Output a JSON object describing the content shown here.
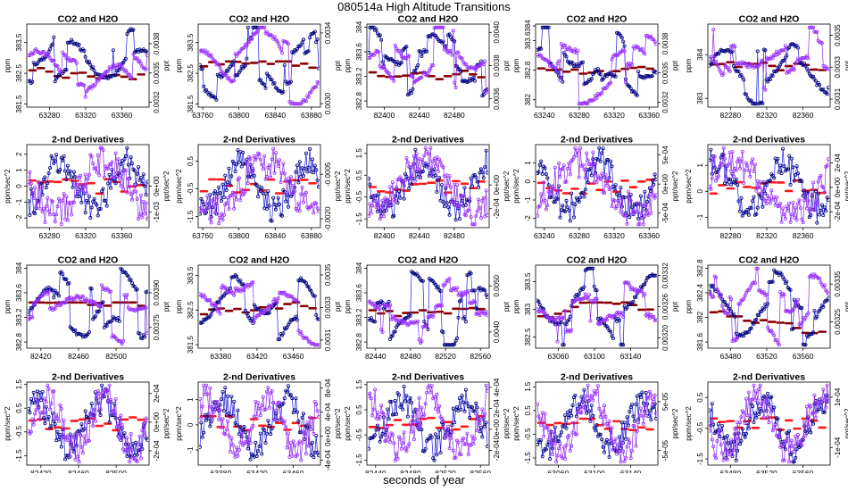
{
  "figure": {
    "title": "080514a   High Altitude Transitions",
    "xlabel": "seconds of year"
  },
  "chart_data": [
    {
      "type": "scatter",
      "row": 0,
      "col": 0,
      "title": "CO2 and H2O",
      "ylabel": "ppm",
      "y2label": "ppt",
      "xticks": [
        63280,
        63320,
        63360
      ],
      "xlim": [
        63255,
        63390
      ],
      "yticks": [
        381.5,
        382.5,
        383.5
      ],
      "ylim": [
        381.4,
        384.1
      ],
      "y2ticks": [
        0.0032,
        0.0035,
        0.0038
      ],
      "y2lim": [
        0.00315,
        0.004
      ],
      "y2_style": "fixed4"
    },
    {
      "type": "scatter",
      "row": 0,
      "col": 1,
      "title": "CO2 and H2O",
      "ylabel": "ppm",
      "y2label": "ppt",
      "xticks": [
        63760,
        63800,
        63840,
        63880
      ],
      "xlim": [
        63755,
        63890
      ],
      "yticks": [
        381.5,
        382.5,
        383.5
      ],
      "ylim": [
        381.4,
        384.1
      ],
      "y2ticks": [
        0.003,
        0.0034
      ],
      "y2lim": [
        0.00298,
        0.00345
      ],
      "y2_style": "fixed4"
    },
    {
      "type": "scatter",
      "row": 0,
      "col": 2,
      "title": "CO2 and H2O",
      "ylabel": "ppm",
      "y2label": "ppt",
      "xticks": [
        82400,
        82440,
        82480
      ],
      "xlim": [
        82380,
        82520
      ],
      "yticks": [
        382.8,
        383.2,
        383.6,
        384.0
      ],
      "ylim": [
        382.7,
        384.05
      ],
      "y2ticks": [
        0.0036,
        0.0038,
        0.004
      ],
      "y2lim": [
        0.00355,
        0.00405
      ],
      "y2_style": "fixed4"
    },
    {
      "type": "scatter",
      "row": 0,
      "col": 3,
      "title": "CO2 and H2O",
      "ylabel": "ppm",
      "y2label": "ppt",
      "xticks": [
        63240,
        63280,
        63320,
        63360
      ],
      "xlim": [
        63230,
        63370
      ],
      "yticks": [
        382.0,
        382.8,
        383.6,
        384.0
      ],
      "ylim": [
        381.8,
        384.05
      ],
      "y2ticks": [
        0.0032,
        0.0035,
        0.0038
      ],
      "y2lim": [
        0.00315,
        0.004
      ],
      "y2_style": "fixed4"
    },
    {
      "type": "scatter",
      "row": 0,
      "col": 4,
      "title": "CO2 and H2O",
      "ylabel": "ppm",
      "y2label": "ppt",
      "xticks": [
        82280,
        82320,
        82360
      ],
      "xlim": [
        82255,
        82390
      ],
      "yticks": [
        383.0,
        384.0
      ],
      "ylim": [
        382.8,
        384.7
      ],
      "y2ticks": [
        0.0031,
        0.0033,
        0.0035
      ],
      "y2lim": [
        0.00305,
        0.00357
      ],
      "y2_style": "fixed4"
    },
    {
      "type": "scatter",
      "row": 1,
      "col": 0,
      "title": "2-nd Derivatives",
      "ylabel": "ppm/sec^2",
      "y2label": "ppt/sec^2",
      "xticks": [
        63280,
        63320,
        63360
      ],
      "xlim": [
        63255,
        63390
      ],
      "yticks": [
        -2,
        -1,
        0,
        1,
        2
      ],
      "ylim": [
        -2.6,
        2.6
      ],
      "y2ticks": [
        -0.001,
        0
      ],
      "y2lim": [
        -0.0016,
        0.0016
      ],
      "y2_style": "sci"
    },
    {
      "type": "scatter",
      "row": 1,
      "col": 1,
      "title": "2-nd Derivatives",
      "ylabel": "ppm/sec^2",
      "y2label": "ppt/sec^2",
      "xticks": [
        63760,
        63800,
        63840,
        63880
      ],
      "xlim": [
        63755,
        63890
      ],
      "yticks": [
        -1.5,
        -0.5,
        0.5
      ],
      "ylim": [
        -1.9,
        1.1
      ],
      "y2ticks": [
        -0.002,
        -0.0005
      ],
      "y2lim": [
        -0.0023,
        0.0005
      ],
      "y2_style": "fixed4"
    },
    {
      "type": "scatter",
      "row": 1,
      "col": 2,
      "title": "2-nd Derivatives",
      "ylabel": "ppm/sec^2",
      "y2label": "ppt/sec^2",
      "xticks": [
        82400,
        82440,
        82480
      ],
      "xlim": [
        82380,
        82520
      ],
      "yticks": [
        -1.5,
        -0.5,
        0.5,
        1.5
      ],
      "ylim": [
        -1.9,
        1.9
      ],
      "y2ticks": [
        -0.0002,
        0
      ],
      "y2lim": [
        -0.00036,
        0.00034
      ],
      "y2_style": "sci"
    },
    {
      "type": "scatter",
      "row": 1,
      "col": 3,
      "title": "2-nd Derivatives",
      "ylabel": "ppm/sec^2",
      "y2label": "ppt/sec^2",
      "xticks": [
        63240,
        63280,
        63320,
        63360
      ],
      "xlim": [
        63230,
        63370
      ],
      "yticks": [
        -2,
        -1,
        0,
        1
      ],
      "ylim": [
        -2.5,
        2.0
      ],
      "y2ticks": [
        -0.0005,
        0,
        0.0005
      ],
      "y2lim": [
        -0.00075,
        0.00068
      ],
      "y2_style": "sci"
    },
    {
      "type": "scatter",
      "row": 1,
      "col": 4,
      "title": "2-nd Derivatives",
      "ylabel": "ppm/sec^2",
      "y2label": "ppt/sec^2",
      "xticks": [
        82280,
        82320,
        82360
      ],
      "xlim": [
        82255,
        82390
      ],
      "yticks": [
        -1,
        0,
        1
      ],
      "ylim": [
        -1.4,
        1.8
      ],
      "y2ticks": [
        -0.0002,
        0,
        0.0002
      ],
      "y2lim": [
        -0.00033,
        0.00035
      ],
      "y2_style": "sci"
    },
    {
      "type": "scatter",
      "row": 2,
      "col": 0,
      "title": "CO2 and H2O",
      "ylabel": "ppm",
      "y2label": "ppt",
      "xticks": [
        82420,
        82460,
        82500
      ],
      "xlim": [
        82405,
        82535
      ],
      "yticks": [
        382.8,
        383.2,
        383.6,
        384.0
      ],
      "ylim": [
        382.7,
        384.05
      ],
      "y2ticks": [
        0.00375,
        0.0039
      ],
      "y2lim": [
        0.00366,
        0.00402
      ],
      "y2_style": "fixed5"
    },
    {
      "type": "scatter",
      "row": 2,
      "col": 1,
      "title": "CO2 and H2O",
      "ylabel": "ppm",
      "y2label": "ppt",
      "xticks": [
        63380,
        63420,
        63460
      ],
      "xlim": [
        63355,
        63490
      ],
      "yticks": [
        381.5,
        382.5,
        383.5
      ],
      "ylim": [
        381.4,
        383.8
      ],
      "y2ticks": [
        0.0031,
        0.0033,
        0.0035
      ],
      "y2lim": [
        0.00305,
        0.00356
      ],
      "y2_style": "fixed4"
    },
    {
      "type": "scatter",
      "row": 2,
      "col": 2,
      "title": "CO2 and H2O",
      "ylabel": "ppm",
      "y2label": "ppt",
      "xticks": [
        82440,
        82480,
        82520,
        82560
      ],
      "xlim": [
        82430,
        82570
      ],
      "yticks": [
        382.8,
        383.2,
        383.6,
        384.0
      ],
      "ylim": [
        382.7,
        384.05
      ],
      "y2ticks": [
        0.004,
        0.005
      ],
      "y2lim": [
        0.00365,
        0.00545
      ],
      "y2_style": "fixed4"
    },
    {
      "type": "scatter",
      "row": 2,
      "col": 3,
      "title": "CO2 and H2O",
      "ylabel": "ppm",
      "y2label": "ppt",
      "xticks": [
        63060,
        63100,
        63140
      ],
      "xlim": [
        63035,
        63170
      ],
      "yticks": [
        382.5,
        383.0,
        383.5
      ],
      "ylim": [
        382.3,
        383.8
      ],
      "y2ticks": [
        0.0032,
        0.00326,
        0.00332
      ],
      "y2lim": [
        0.00318,
        0.00334
      ],
      "y2_style": "fixed5"
    },
    {
      "type": "scatter",
      "row": 2,
      "col": 4,
      "title": "CO2 and H2O",
      "ylabel": "ppm",
      "y2label": "ppt",
      "xticks": [
        63480,
        63520,
        63560
      ],
      "xlim": [
        63455,
        63590
      ],
      "yticks": [
        381.6,
        382.0,
        382.4,
        382.8
      ],
      "ylim": [
        381.5,
        382.85
      ],
      "y2ticks": [
        0.00325,
        0.00335
      ],
      "y2lim": [
        0.00318,
        0.0034
      ],
      "y2_style": "fixed5"
    },
    {
      "type": "scatter",
      "row": 3,
      "col": 0,
      "title": "2-nd Derivatives",
      "ylabel": "ppm/sec^2",
      "y2label": "ppt/sec^2",
      "xticks": [
        82420,
        82460,
        82500
      ],
      "xlim": [
        82405,
        82535
      ],
      "yticks": [
        -1.5,
        -0.5,
        0.5,
        1.5
      ],
      "ylim": [
        -1.9,
        1.6
      ],
      "y2ticks": [
        -0.0002,
        0,
        0.0002
      ],
      "y2lim": [
        -0.0003,
        0.00028
      ],
      "y2_style": "sci"
    },
    {
      "type": "scatter",
      "row": 3,
      "col": 1,
      "title": "2-nd Derivatives",
      "ylabel": "ppm/sec^2",
      "y2label": "ppt/sec^2",
      "xticks": [
        63380,
        63420,
        63460
      ],
      "xlim": [
        63355,
        63490
      ],
      "yticks": [
        -1.0,
        0.0,
        1.0
      ],
      "ylim": [
        -1.6,
        1.7
      ],
      "y2ticks": [
        -0.0004,
        0,
        0.0004,
        0.0008
      ],
      "y2lim": [
        -0.00048,
        0.0009
      ],
      "y2_style": "sci"
    },
    {
      "type": "scatter",
      "row": 3,
      "col": 2,
      "title": "2-nd Derivatives",
      "ylabel": "ppm/sec^2",
      "y2label": "ppt/sec^2",
      "xticks": [
        82440,
        82480,
        82520,
        82560
      ],
      "xlim": [
        82430,
        82570
      ],
      "yticks": [
        -1.5,
        -0.5,
        0.5,
        1.5
      ],
      "ylim": [
        -1.7,
        1.6
      ],
      "y2ticks": [
        -0.0002,
        0,
        0.0002,
        0.0004
      ],
      "y2lim": [
        -0.00034,
        0.00045
      ],
      "y2_style": "sci"
    },
    {
      "type": "scatter",
      "row": 3,
      "col": 3,
      "title": "2-nd Derivatives",
      "ylabel": "ppm/sec^2",
      "y2label": "ppt/sec^2",
      "xticks": [
        63060,
        63100,
        63140
      ],
      "xlim": [
        63035,
        63170
      ],
      "yticks": [
        -1.5,
        -0.5,
        0.5,
        1.5
      ],
      "ylim": [
        -1.8,
        1.7
      ],
      "y2ticks": [
        -5e-05,
        5e-05
      ],
      "y2lim": [
        -8e-05,
        9e-05
      ],
      "y2_style": "sci"
    },
    {
      "type": "scatter",
      "row": 3,
      "col": 4,
      "title": "2-nd Derivatives",
      "ylabel": "ppm/sec^2",
      "y2label": "ppt/sec^2",
      "xticks": [
        63480,
        63520,
        63560
      ],
      "xlim": [
        63455,
        63590
      ],
      "yticks": [
        -1.5,
        -0.5,
        0.5
      ],
      "ylim": [
        -1.7,
        1.0
      ],
      "y2ticks": [
        -0.0001,
        0.0001
      ],
      "y2lim": [
        -0.00017,
        0.00016
      ],
      "y2_style": "sci"
    }
  ],
  "colors": {
    "co2_line": "#1b1bd6",
    "co2_marker": "#00007a",
    "h2o_line": "#8a2be2",
    "h2o_marker": "#9b30ff",
    "band_dark": "#8b0000",
    "band_bright": "#ff1a1a",
    "frame": "#000000"
  }
}
